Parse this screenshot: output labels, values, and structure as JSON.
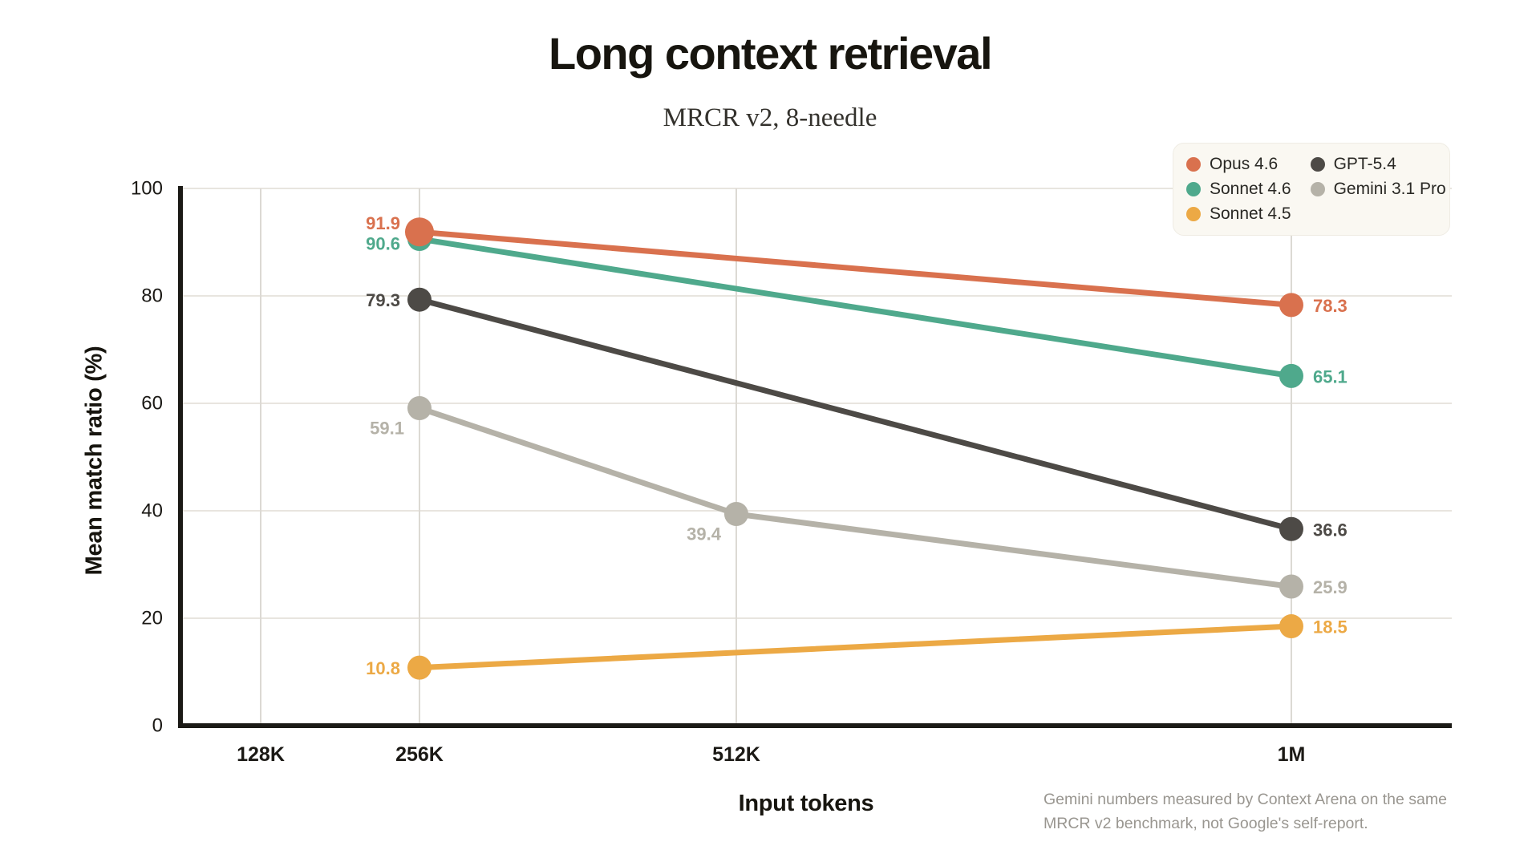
{
  "header": {
    "title": "Long context retrieval",
    "subtitle": "MRCR v2, 8-needle"
  },
  "axes": {
    "x_title": "Input tokens",
    "y_title": "Mean match ratio (%)",
    "x_ticks": [
      "128K",
      "256K",
      "512K",
      "1M"
    ],
    "y_ticks": [
      100,
      80,
      60,
      40,
      20,
      0
    ]
  },
  "footnote": "Gemini numbers measured by Context Arena on the same MRCR v2 benchmark, not Google's self-report.",
  "colors": {
    "background": "#ffffff",
    "legend_background": "#faf8f2",
    "axis": "#1b1a16",
    "gridline_horizontal": "#e8e5df",
    "gridline_vertical": "#dcd9d3",
    "tick_label": "#1b1915",
    "footnote_text": "#999690"
  },
  "chart_data": {
    "type": "line",
    "title": "Long context retrieval",
    "subtitle": "MRCR v2, 8-needle",
    "xlabel": "Input tokens",
    "ylabel": "Mean match ratio (%)",
    "ylim": [
      0,
      100
    ],
    "x_categories": [
      "128K",
      "256K",
      "512K",
      "1M"
    ],
    "grid": true,
    "legend_position": "top-right",
    "series": [
      {
        "name": "Opus 4.6",
        "color": "#d9714e",
        "points": [
          {
            "x": "256K",
            "y": 91.9
          },
          {
            "x": "1M",
            "y": 78.3
          }
        ]
      },
      {
        "name": "Sonnet 4.6",
        "color": "#4fa98c",
        "points": [
          {
            "x": "256K",
            "y": 90.6
          },
          {
            "x": "1M",
            "y": 65.1
          }
        ]
      },
      {
        "name": "Sonnet 4.5",
        "color": "#eca945",
        "points": [
          {
            "x": "256K",
            "y": 10.8
          },
          {
            "x": "1M",
            "y": 18.5
          }
        ]
      },
      {
        "name": "GPT-5.4",
        "color": "#4d4a46",
        "points": [
          {
            "x": "256K",
            "y": 79.3
          },
          {
            "x": "1M",
            "y": 36.6
          }
        ]
      },
      {
        "name": "Gemini 3.1 Pro",
        "color": "#b5b2a8",
        "points": [
          {
            "x": "256K",
            "y": 59.1
          },
          {
            "x": "512K",
            "y": 39.4
          },
          {
            "x": "1M",
            "y": 25.9
          }
        ]
      }
    ]
  }
}
